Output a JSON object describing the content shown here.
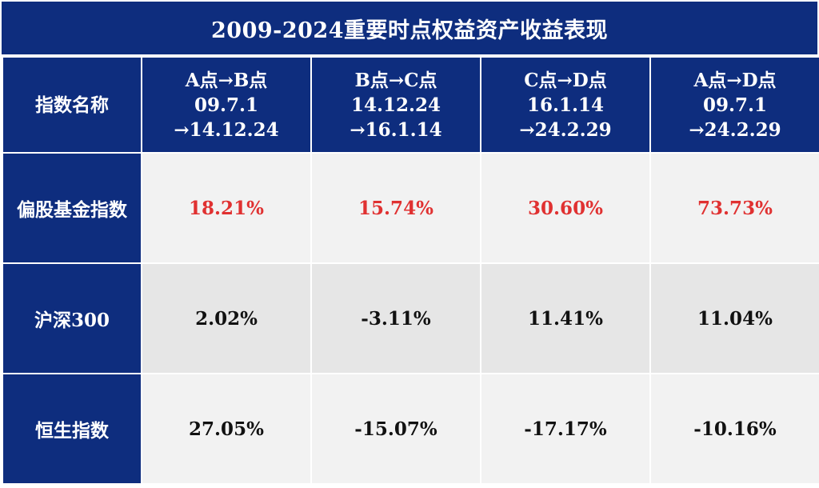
{
  "title": "2009-2024重要时点权益资产收益表现",
  "header": {
    "name_label": "指数名称",
    "periods": [
      {
        "label": "A点→B点",
        "start": "09.7.1",
        "end": "→14.12.24"
      },
      {
        "label": "B点→C点",
        "start": "14.12.24",
        "end": "→16.1.14"
      },
      {
        "label": "C点→D点",
        "start": "16.1.14",
        "end": "→24.2.29"
      },
      {
        "label": "A点→D点",
        "start": "09.7.1",
        "end": "→24.2.29"
      }
    ]
  },
  "rows": [
    {
      "name": "偏股基金指数",
      "values": [
        "18.21%",
        "15.74%",
        "30.60%",
        "73.73%"
      ],
      "highlight": true
    },
    {
      "name": "沪深300",
      "values": [
        "2.02%",
        "-3.11%",
        "11.41%",
        "11.04%"
      ],
      "highlight": false
    },
    {
      "name": "恒生指数",
      "values": [
        "27.05%",
        "-15.07%",
        "-17.17%",
        "-10.16%"
      ],
      "highlight": false
    }
  ],
  "colors": {
    "header_bg": "#0e2d7e",
    "highlight_text": "#e03131",
    "cell_light": "#f2f2f2",
    "cell_mid": "#e6e6e6"
  }
}
